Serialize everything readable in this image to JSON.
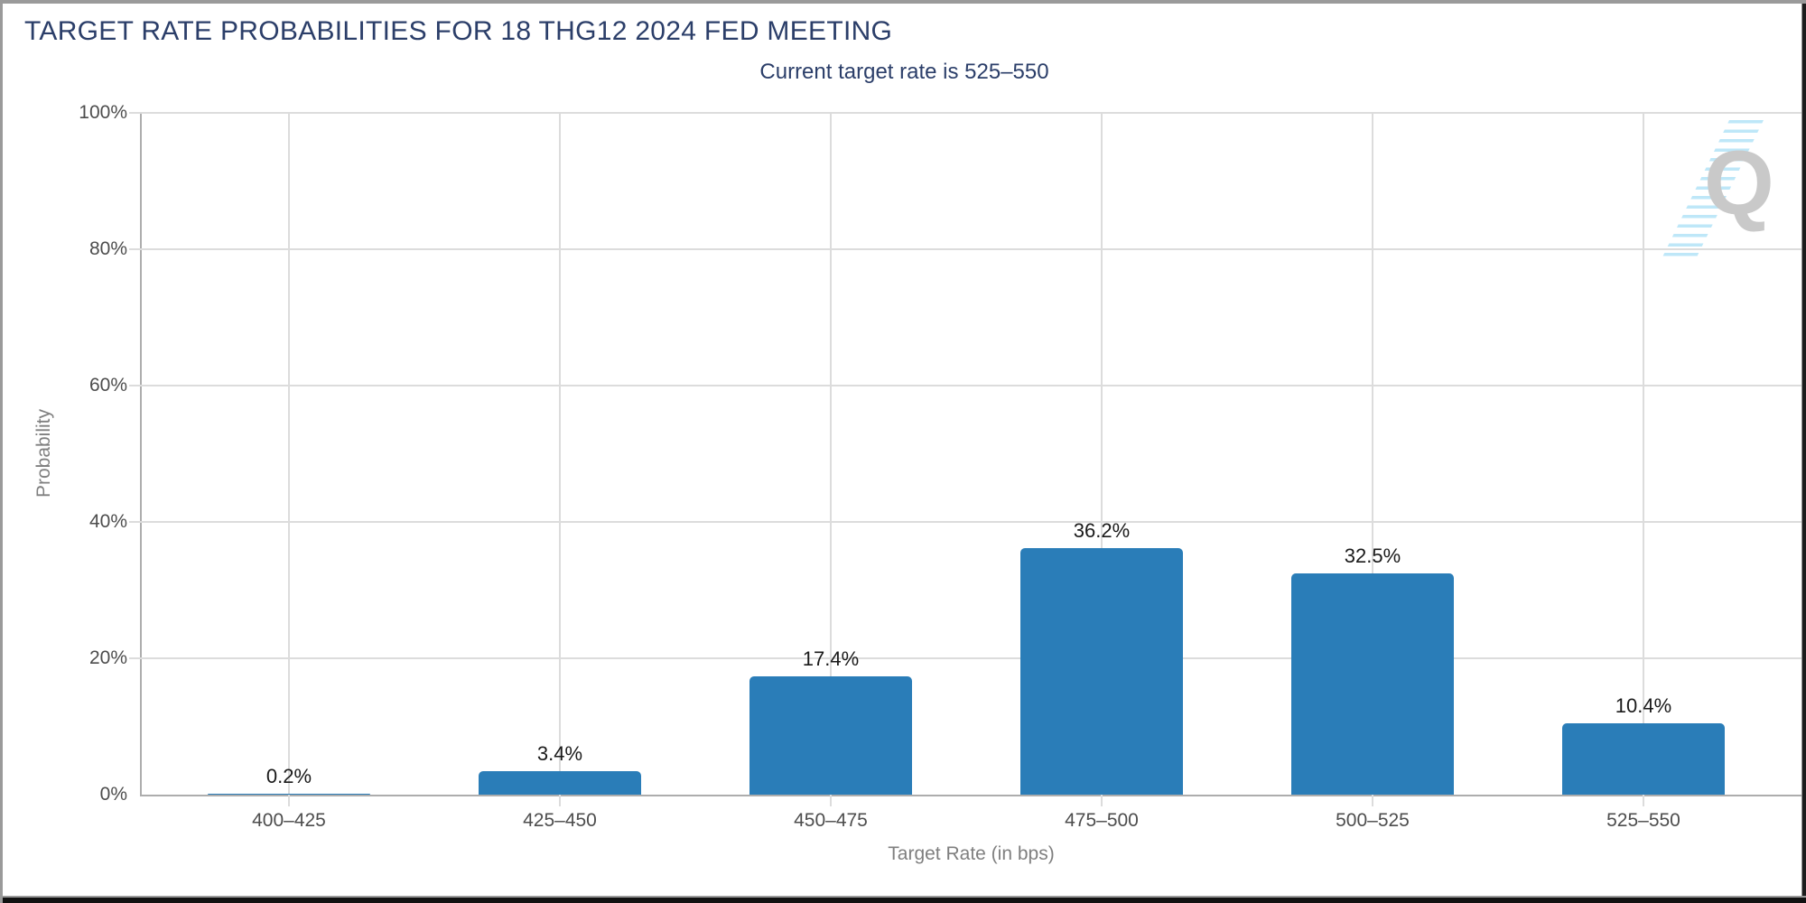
{
  "watermark": {
    "letter": "Q"
  },
  "chart_data": {
    "type": "bar",
    "title": "TARGET RATE PROBABILITIES FOR 18 THG12 2024 FED MEETING",
    "subtitle": "Current target rate is 525–550",
    "xlabel": "Target Rate (in bps)",
    "ylabel": "Probability",
    "categories": [
      "400–425",
      "425–450",
      "450–475",
      "475–500",
      "500–525",
      "525–550"
    ],
    "values": [
      0.2,
      3.4,
      17.4,
      36.2,
      32.5,
      10.4
    ],
    "bar_labels": [
      "0.2%",
      "3.4%",
      "17.4%",
      "36.2%",
      "32.5%",
      "10.4%"
    ],
    "ylim": [
      0,
      100
    ],
    "yticks": [
      0,
      20,
      40,
      60,
      80,
      100
    ],
    "ytick_labels": [
      "0%",
      "20%",
      "40%",
      "60%",
      "80%",
      "100%"
    ],
    "grid": true,
    "legend": null,
    "colors": {
      "bar": "#2A7DB8",
      "title": "#2B3E69",
      "subtitle": "#2B3E69",
      "data_label": "#1A1A1A",
      "tick_label": "#4D4D4D",
      "axis_title": "#7F7F7F",
      "grid": "#DCDCDC",
      "axis_line": "#ADADAD",
      "watermark_letter": "#C9C9C9",
      "watermark_dash": "#BEE7F8"
    }
  }
}
